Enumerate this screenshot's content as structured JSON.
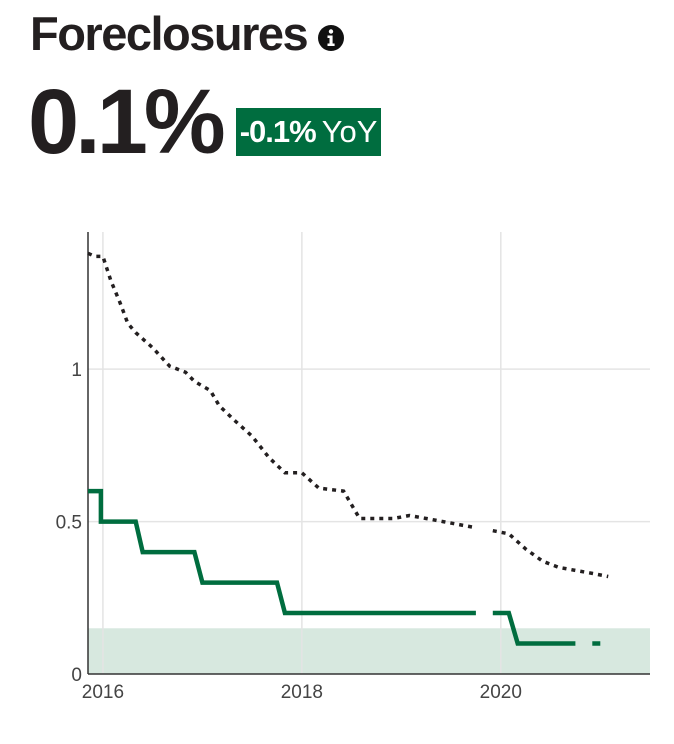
{
  "header": {
    "title": "Foreclosures",
    "info_icon": "info-circle-icon",
    "value": "0.1%",
    "yoy_change": "-0.1%",
    "yoy_unit": "YoY"
  },
  "colors": {
    "accent": "#006d3f",
    "band": "#d7e8df",
    "reference_line": "#231f20",
    "grid": "#e4e4e4"
  },
  "chart_data": {
    "type": "line",
    "x_ticks": [
      "2016",
      "2018",
      "2020"
    ],
    "y_ticks": [
      "0",
      "0.5",
      "1"
    ],
    "xlim": [
      2015.85,
      2021.5
    ],
    "ylim": [
      0,
      1.45
    ],
    "grid": true,
    "shaded_band": {
      "from": 0,
      "to": 0.15
    },
    "series": [
      {
        "style": "solid",
        "segments": [
          [
            [
              2015.85,
              0.6
            ],
            [
              2015.98,
              0.6
            ],
            [
              2015.98,
              0.5
            ],
            [
              2016.33,
              0.5
            ],
            [
              2016.4,
              0.4
            ],
            [
              2016.92,
              0.4
            ],
            [
              2017.0,
              0.3
            ],
            [
              2017.75,
              0.3
            ],
            [
              2017.83,
              0.2
            ],
            [
              2019.75,
              0.2
            ]
          ],
          [
            [
              2019.92,
              0.2
            ],
            [
              2020.08,
              0.2
            ],
            [
              2020.17,
              0.1
            ],
            [
              2020.75,
              0.1
            ]
          ],
          [
            [
              2020.92,
              0.1
            ],
            [
              2021.0,
              0.1
            ]
          ]
        ]
      },
      {
        "style": "dotted",
        "segments": [
          [
            [
              2015.85,
              1.38
            ],
            [
              2015.92,
              1.37
            ],
            [
              2016.0,
              1.37
            ],
            [
              2016.08,
              1.29
            ],
            [
              2016.17,
              1.22
            ],
            [
              2016.25,
              1.15
            ],
            [
              2016.33,
              1.12
            ],
            [
              2016.5,
              1.07
            ],
            [
              2016.67,
              1.01
            ],
            [
              2016.83,
              0.99
            ],
            [
              2016.92,
              0.96
            ],
            [
              2017.08,
              0.93
            ],
            [
              2017.17,
              0.88
            ],
            [
              2017.33,
              0.83
            ],
            [
              2017.5,
              0.78
            ],
            [
              2017.67,
              0.71
            ],
            [
              2017.83,
              0.66
            ],
            [
              2018.0,
              0.66
            ],
            [
              2018.17,
              0.61
            ],
            [
              2018.42,
              0.6
            ],
            [
              2018.58,
              0.51
            ],
            [
              2018.92,
              0.51
            ],
            [
              2019.08,
              0.52
            ],
            [
              2019.25,
              0.51
            ],
            [
              2019.42,
              0.5
            ],
            [
              2019.58,
              0.49
            ],
            [
              2019.75,
              0.48
            ]
          ],
          [
            [
              2019.92,
              0.47
            ],
            [
              2020.08,
              0.46
            ],
            [
              2020.25,
              0.41
            ],
            [
              2020.42,
              0.37
            ],
            [
              2020.58,
              0.35
            ],
            [
              2020.75,
              0.34
            ],
            [
              2020.92,
              0.33
            ],
            [
              2021.08,
              0.32
            ]
          ]
        ]
      }
    ]
  }
}
